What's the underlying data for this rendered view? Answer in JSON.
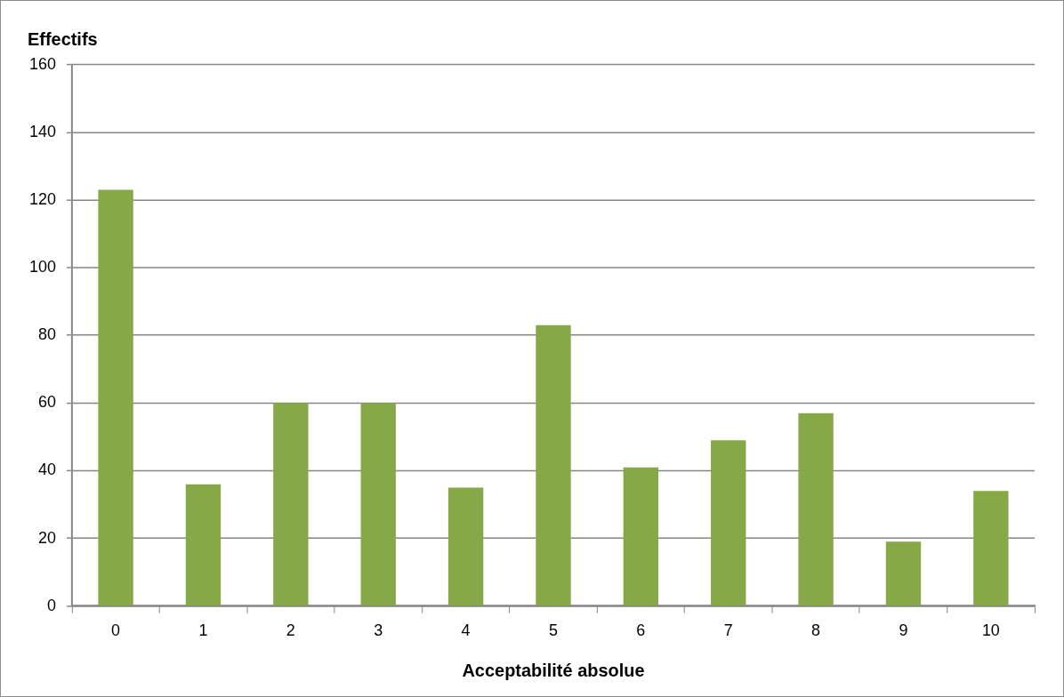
{
  "chart_data": {
    "type": "bar",
    "xlabel": "Acceptabilité absolue",
    "ylabel": "Effectifs",
    "categories": [
      "0",
      "1",
      "2",
      "3",
      "4",
      "5",
      "6",
      "7",
      "8",
      "9",
      "10"
    ],
    "values": [
      123,
      36,
      60,
      60,
      35,
      83,
      41,
      49,
      57,
      19,
      34
    ],
    "color": "#86a846",
    "ylim": [
      0,
      160
    ],
    "yticks": [
      0,
      20,
      40,
      60,
      80,
      100,
      120,
      140,
      160
    ],
    "grid": "y",
    "legend": false
  }
}
